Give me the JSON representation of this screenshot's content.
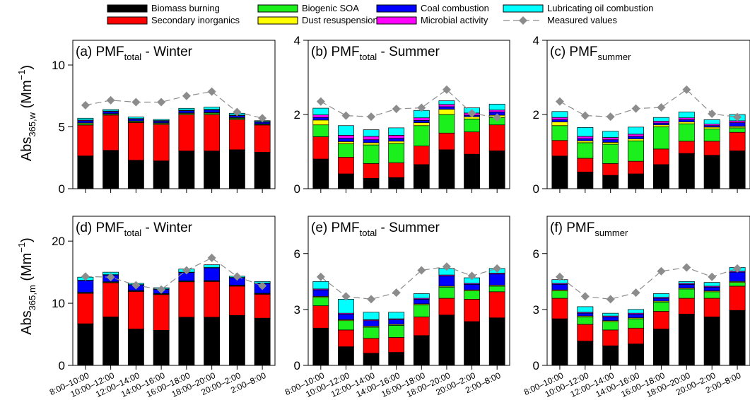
{
  "legend": {
    "items": [
      {
        "label": "Biomass burning",
        "color": "#000000",
        "kind": "box"
      },
      {
        "label": "Secondary inorganics",
        "color": "#ff0000",
        "kind": "box"
      },
      {
        "label": "Biogenic SOA",
        "color": "#1cf01c",
        "kind": "box"
      },
      {
        "label": "Dust resuspension",
        "color": "#ffff00",
        "kind": "box"
      },
      {
        "label": "Coal combustion",
        "color": "#0000ff",
        "kind": "box"
      },
      {
        "label": "Microbial activity",
        "color": "#ff00ff",
        "kind": "box"
      },
      {
        "label": "Lubricating oil combustion",
        "color": "#00ffff",
        "kind": "box"
      },
      {
        "label": "Measured values",
        "color": "#8c8c8c",
        "kind": "line-diamond"
      }
    ]
  },
  "y_labels": {
    "top": {
      "main": "Abs",
      "sub": "365,w",
      "unit": " (Mm",
      "sup": "−1",
      "close": ")"
    },
    "bottom": {
      "main": "Abs",
      "sub": "365,m",
      "unit": " (Mm",
      "sup": "−1",
      "close": ")"
    }
  },
  "chart_data": [
    {
      "type": "bar",
      "stacked": true,
      "panel": "a",
      "title": {
        "prefix": "(a) PMF",
        "sub": "total",
        "suffix": " - Winter"
      },
      "ylim": [
        0,
        12
      ],
      "yticks": [
        0,
        5,
        10
      ],
      "categories": [
        "8:00–10:00",
        "10:00–12:00",
        "12:00–14:00",
        "14:00–16:00",
        "16:00–18:00",
        "18:00–20:00",
        "20:00–2:00",
        "2:00–8:00"
      ],
      "series": [
        {
          "name": "Biomass burning",
          "values": [
            2.65,
            3.1,
            2.3,
            2.25,
            3.05,
            3.05,
            3.15,
            2.95
          ]
        },
        {
          "name": "Secondary inorganics",
          "values": [
            2.5,
            2.85,
            3.05,
            2.95,
            2.95,
            2.95,
            2.45,
            2.2
          ]
        },
        {
          "name": "Biogenic SOA",
          "values": [
            0.1,
            0.07,
            0.08,
            0.08,
            0.08,
            0.12,
            0.1,
            0.06
          ]
        },
        {
          "name": "Dust resuspension",
          "values": [
            0.07,
            0.05,
            0.05,
            0.05,
            0.05,
            0.05,
            0.05,
            0.04
          ]
        },
        {
          "name": "Coal combustion",
          "values": [
            0.17,
            0.16,
            0.14,
            0.13,
            0.17,
            0.19,
            0.15,
            0.13
          ]
        },
        {
          "name": "Microbial activity",
          "values": [
            0.06,
            0.05,
            0.05,
            0.05,
            0.05,
            0.05,
            0.05,
            0.05
          ]
        },
        {
          "name": "Lubricating oil combustion",
          "values": [
            0.15,
            0.12,
            0.13,
            0.09,
            0.15,
            0.19,
            0.15,
            0.07
          ]
        }
      ],
      "measured": [
        6.75,
        7.15,
        7.0,
        7.0,
        7.5,
        7.85,
        6.2,
        5.7
      ]
    },
    {
      "type": "bar",
      "stacked": true,
      "panel": "b",
      "title": {
        "prefix": "(b) PMF",
        "sub": "total",
        "suffix": " - Summer"
      },
      "ylim": [
        0,
        4
      ],
      "yticks": [
        0,
        2,
        4
      ],
      "categories": [
        "8:00–10:00",
        "10:00–12:00",
        "12:00–14:00",
        "14:00–16:00",
        "16:00–18:00",
        "18:00–20:00",
        "20:00–2:00",
        "2:00–8:00"
      ],
      "series": [
        {
          "name": "Biomass burning",
          "values": [
            0.8,
            0.4,
            0.28,
            0.3,
            0.65,
            1.05,
            0.93,
            1.02
          ]
        },
        {
          "name": "Secondary inorganics",
          "values": [
            0.6,
            0.45,
            0.4,
            0.4,
            0.5,
            0.45,
            0.6,
            0.7
          ]
        },
        {
          "name": "Biogenic SOA",
          "values": [
            0.32,
            0.36,
            0.5,
            0.52,
            0.55,
            0.5,
            0.35,
            0.2
          ]
        },
        {
          "name": "Dust resuspension",
          "values": [
            0.13,
            0.06,
            0.06,
            0.06,
            0.08,
            0.14,
            0.06,
            0.06
          ]
        },
        {
          "name": "Coal combustion",
          "values": [
            0.07,
            0.09,
            0.08,
            0.08,
            0.06,
            0.07,
            0.04,
            0.09
          ]
        },
        {
          "name": "Microbial activity",
          "values": [
            0.07,
            0.08,
            0.09,
            0.08,
            0.07,
            0.06,
            0.06,
            0.05
          ]
        },
        {
          "name": "Lubricating oil combustion",
          "values": [
            0.18,
            0.26,
            0.18,
            0.2,
            0.2,
            0.1,
            0.14,
            0.16
          ]
        }
      ],
      "measured": [
        2.35,
        1.97,
        1.94,
        2.15,
        2.18,
        2.67,
        2.03,
        1.92
      ]
    },
    {
      "type": "bar",
      "stacked": true,
      "panel": "c",
      "title": {
        "prefix": "(c) PMF",
        "sub": "summer",
        "suffix": ""
      },
      "ylim": [
        0,
        4
      ],
      "yticks": [
        0,
        2,
        4
      ],
      "categories": [
        "8:00–10:00",
        "10:00–12:00",
        "12:00–14:00",
        "14:00–16:00",
        "16:00–18:00",
        "18:00–20:00",
        "20:00–2:00",
        "2:00–8:00"
      ],
      "series": [
        {
          "name": "Biomass burning",
          "values": [
            0.88,
            0.45,
            0.36,
            0.4,
            0.65,
            0.95,
            0.9,
            1.02
          ]
        },
        {
          "name": "Secondary inorganics",
          "values": [
            0.42,
            0.37,
            0.32,
            0.34,
            0.42,
            0.33,
            0.38,
            0.5
          ]
        },
        {
          "name": "Biogenic SOA",
          "values": [
            0.4,
            0.42,
            0.52,
            0.55,
            0.6,
            0.47,
            0.33,
            0.12
          ]
        },
        {
          "name": "Dust resuspension",
          "values": [
            0.1,
            0.05,
            0.05,
            0.05,
            0.05,
            0.05,
            0.05,
            0.04
          ]
        },
        {
          "name": "Coal combustion",
          "values": [
            0.06,
            0.06,
            0.07,
            0.07,
            0.05,
            0.06,
            0.04,
            0.1
          ]
        },
        {
          "name": "Microbial activity",
          "values": [
            0.06,
            0.06,
            0.06,
            0.06,
            0.05,
            0.05,
            0.04,
            0.05
          ]
        },
        {
          "name": "Lubricating oil combustion",
          "values": [
            0.16,
            0.24,
            0.17,
            0.19,
            0.1,
            0.16,
            0.12,
            0.17
          ]
        }
      ],
      "measured": [
        2.35,
        1.97,
        1.94,
        2.16,
        2.19,
        2.67,
        2.02,
        1.93
      ]
    },
    {
      "type": "bar",
      "stacked": true,
      "panel": "d",
      "title": {
        "prefix": "(d) PMF",
        "sub": "total",
        "suffix": " - Winter"
      },
      "ylim": [
        0,
        24
      ],
      "yticks": [
        0,
        10,
        20
      ],
      "categories": [
        "8:00–10:00",
        "10:00–12:00",
        "12:00–14:00",
        "14:00–16:00",
        "16:00–18:00",
        "18:00–20:00",
        "20:00–2:00",
        "2:00–8:00"
      ],
      "series": [
        {
          "name": "Biomass burning",
          "values": [
            6.7,
            7.8,
            5.85,
            5.65,
            7.75,
            7.75,
            8.05,
            7.6
          ]
        },
        {
          "name": "Secondary inorganics",
          "values": [
            4.9,
            5.5,
            6.05,
            5.75,
            5.7,
            5.75,
            4.7,
            3.85
          ]
        },
        {
          "name": "Biogenic SOA",
          "values": [
            0.1,
            0.1,
            0.1,
            0.1,
            0.1,
            0.1,
            0.1,
            0.1
          ]
        },
        {
          "name": "Dust resuspension",
          "values": [
            0.05,
            0.05,
            0.05,
            0.05,
            0.05,
            0.05,
            0.05,
            0.05
          ]
        },
        {
          "name": "Coal combustion",
          "values": [
            1.9,
            1.1,
            0.9,
            0.7,
            1.35,
            2.05,
            1.2,
            1.6
          ]
        },
        {
          "name": "Microbial activity",
          "values": [
            0.05,
            0.05,
            0.05,
            0.05,
            0.05,
            0.05,
            0.05,
            0.05
          ]
        },
        {
          "name": "Lubricating oil combustion",
          "values": [
            0.5,
            0.4,
            0.2,
            0.2,
            0.5,
            0.45,
            0.2,
            0.25
          ]
        }
      ],
      "measured": [
        14.3,
        14.2,
        12.9,
        12.2,
        15.3,
        17.3,
        14.3,
        12.8
      ]
    },
    {
      "type": "bar",
      "stacked": true,
      "panel": "e",
      "title": {
        "prefix": "(e) PMF",
        "sub": "total",
        "suffix": " - Summer"
      },
      "ylim": [
        0,
        8
      ],
      "yticks": [
        0,
        3,
        6
      ],
      "categories": [
        "8:00–10:00",
        "10:00–12:00",
        "12:00–14:00",
        "14:00–16:00",
        "16:00–18:00",
        "18:00–20:00",
        "20:00–2:00",
        "2:00–8:00"
      ],
      "series": [
        {
          "name": "Biomass burning",
          "values": [
            2.0,
            1.0,
            0.65,
            0.7,
            1.6,
            2.7,
            2.35,
            2.55
          ]
        },
        {
          "name": "Secondary inorganics",
          "values": [
            1.2,
            0.9,
            0.8,
            0.8,
            1.0,
            0.9,
            1.2,
            1.4
          ]
        },
        {
          "name": "Biogenic SOA",
          "values": [
            0.45,
            0.5,
            0.6,
            0.65,
            0.65,
            0.6,
            0.45,
            0.3
          ]
        },
        {
          "name": "Dust resuspension",
          "values": [
            0.05,
            0.05,
            0.05,
            0.05,
            0.05,
            0.05,
            0.05,
            0.05
          ]
        },
        {
          "name": "Coal combustion",
          "values": [
            0.35,
            0.3,
            0.3,
            0.25,
            0.25,
            0.55,
            0.3,
            0.6
          ]
        },
        {
          "name": "Microbial activity",
          "values": [
            0.05,
            0.05,
            0.05,
            0.05,
            0.05,
            0.05,
            0.05,
            0.05
          ]
        },
        {
          "name": "Lubricating oil combustion",
          "values": [
            0.4,
            0.75,
            0.4,
            0.35,
            0.25,
            0.35,
            0.3,
            0.25
          ]
        }
      ],
      "measured": [
        4.75,
        3.7,
        3.55,
        3.9,
        5.1,
        5.3,
        4.8,
        5.2
      ]
    },
    {
      "type": "bar",
      "stacked": true,
      "panel": "f",
      "title": {
        "prefix": "(f) PMF",
        "sub": "summer",
        "suffix": ""
      },
      "ylim": [
        0,
        8
      ],
      "yticks": [
        0,
        3,
        6
      ],
      "categories": [
        "8:00–10:00",
        "10:00–12:00",
        "12:00–14:00",
        "14:00–16:00",
        "16:00–18:00",
        "18:00–20:00",
        "20:00–2:00",
        "2:00–8:00"
      ],
      "series": [
        {
          "name": "Biomass burning",
          "values": [
            2.5,
            1.3,
            1.05,
            1.15,
            1.95,
            2.75,
            2.6,
            2.95
          ]
        },
        {
          "name": "Secondary inorganics",
          "values": [
            1.1,
            0.9,
            0.85,
            0.85,
            0.95,
            0.85,
            1.0,
            1.3
          ]
        },
        {
          "name": "Biogenic SOA",
          "values": [
            0.4,
            0.4,
            0.45,
            0.5,
            0.5,
            0.5,
            0.35,
            0.2
          ]
        },
        {
          "name": "Dust resuspension",
          "values": [
            0.05,
            0.05,
            0.05,
            0.05,
            0.05,
            0.05,
            0.05,
            0.05
          ]
        },
        {
          "name": "Coal combustion",
          "values": [
            0.3,
            0.15,
            0.2,
            0.2,
            0.15,
            0.2,
            0.2,
            0.5
          ]
        },
        {
          "name": "Microbial activity",
          "values": [
            0.05,
            0.05,
            0.05,
            0.05,
            0.05,
            0.05,
            0.05,
            0.05
          ]
        },
        {
          "name": "Lubricating oil combustion",
          "values": [
            0.2,
            0.3,
            0.15,
            0.2,
            0.2,
            0.1,
            0.2,
            0.2
          ]
        }
      ],
      "measured": [
        4.75,
        3.7,
        3.55,
        3.9,
        5.05,
        5.25,
        4.75,
        5.2
      ]
    }
  ]
}
